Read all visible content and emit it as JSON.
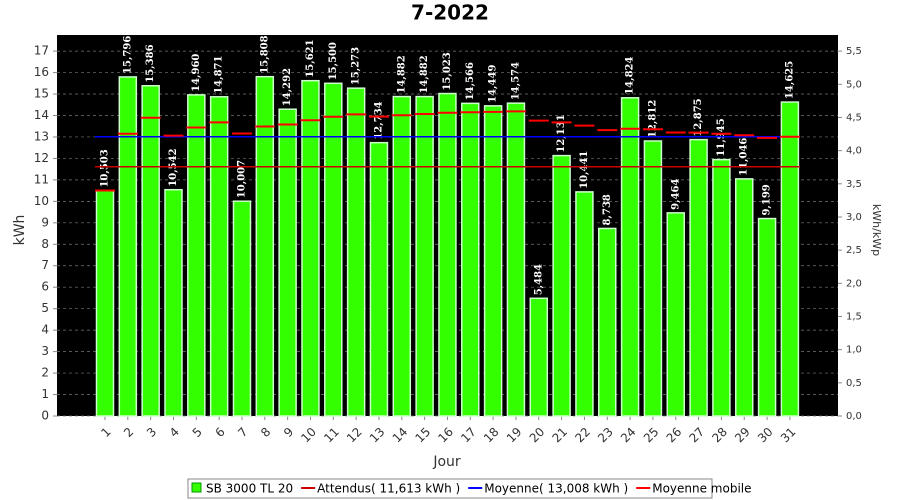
{
  "chart_data": {
    "type": "bar",
    "title": "7-2022",
    "x_label": "Jour",
    "y_label": "kWh",
    "y2_label": "kWh/kWp",
    "categories": [
      "1",
      "2",
      "3",
      "4",
      "5",
      "6",
      "7",
      "8",
      "9",
      "10",
      "11",
      "12",
      "13",
      "14",
      "15",
      "16",
      "17",
      "18",
      "19",
      "20",
      "21",
      "22",
      "23",
      "24",
      "25",
      "26",
      "27",
      "28",
      "29",
      "30",
      "31"
    ],
    "series": [
      {
        "name": "SB 3000 TL 20",
        "color": "#33ff00",
        "values": [
          10.503,
          15.796,
          15.386,
          10.542,
          14.96,
          14.871,
          10.007,
          15.808,
          14.292,
          15.621,
          15.5,
          15.273,
          12.734,
          14.882,
          14.882,
          15.023,
          14.566,
          14.449,
          14.574,
          5.484,
          12.131,
          10.441,
          8.738,
          14.824,
          12.812,
          9.464,
          12.875,
          11.945,
          11.046,
          9.199,
          14.625
        ],
        "value_labels": [
          "10,503",
          "15,796",
          "15,386",
          "10,542",
          "14,960",
          "14,871",
          "10,007",
          "15,808",
          "14,292",
          "15,621",
          "15,500",
          "15,273",
          "12,734",
          "14,882",
          "14,882",
          "15,023",
          "14,566",
          "14,449",
          "14,574",
          "5,484",
          "12,131",
          "10,441",
          "8,738",
          "14,824",
          "12,812",
          "9,464",
          "12,875",
          "11,945",
          "11,046",
          "9,199",
          "14,625"
        ]
      },
      {
        "name": "Attendus( 11,613 kWh )",
        "color": "#cc0000",
        "value": 11.613
      },
      {
        "name": "Moyenne( 13,008 kWh )",
        "color": "#0000ff",
        "value": 13.008
      },
      {
        "name": "Moyenne mobile",
        "color": "#ff0000",
        "values": [
          10.503,
          13.15,
          13.895,
          13.06,
          13.44,
          13.68,
          13.16,
          13.49,
          13.58,
          13.78,
          13.94,
          14.05,
          13.95,
          14.01,
          14.07,
          14.13,
          14.15,
          14.17,
          14.19,
          13.76,
          13.68,
          13.53,
          13.32,
          13.38,
          13.36,
          13.21,
          13.2,
          13.15,
          13.08,
          12.96,
          13.01
        ]
      }
    ],
    "ylim": [
      0,
      17.75
    ],
    "yticks": [
      0,
      1,
      2,
      3,
      4,
      5,
      6,
      7,
      8,
      9,
      10,
      11,
      12,
      13,
      14,
      15,
      16,
      17
    ],
    "y2lim": [
      0,
      5.743
    ],
    "y2ticks": [
      {
        "value": 0,
        "label": "0,0"
      },
      {
        "value": 0.5,
        "label": "0,5"
      },
      {
        "value": 1,
        "label": "1,0"
      },
      {
        "value": 1.5,
        "label": "1,5"
      },
      {
        "value": 2,
        "label": "2,0"
      },
      {
        "value": 2.5,
        "label": "2,5"
      },
      {
        "value": 3,
        "label": "3,0"
      },
      {
        "value": 3.5,
        "label": "3,5"
      },
      {
        "value": 4,
        "label": "4,0"
      },
      {
        "value": 4.5,
        "label": "4,5"
      },
      {
        "value": 5,
        "label": "5,0"
      },
      {
        "value": 5.5,
        "label": "5,5"
      }
    ],
    "grid": true
  }
}
